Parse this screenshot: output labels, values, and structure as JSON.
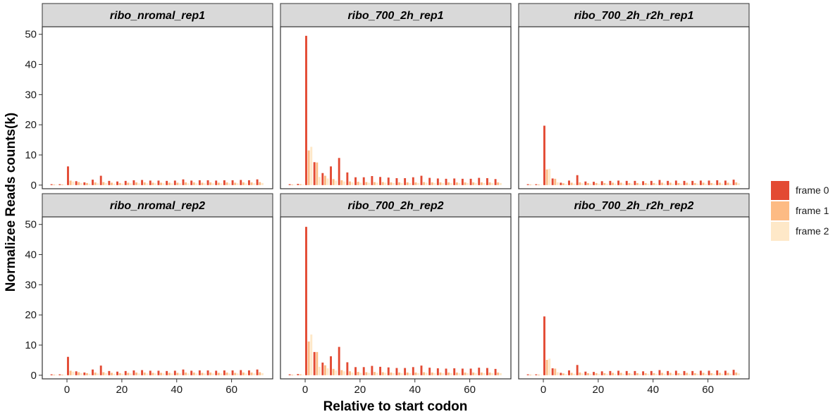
{
  "chart_data": {
    "type": "bar",
    "xlabel": "Relative to start codon",
    "ylabel": "Normalizee Reads counts(k)",
    "xlim": [
      -9,
      75
    ],
    "ylim": [
      -1.2,
      52.5
    ],
    "xticks": [
      0,
      20,
      40,
      60
    ],
    "yticks": [
      0,
      10,
      20,
      30,
      40,
      50
    ],
    "legend": {
      "position": "right",
      "entries": [
        "frame 0",
        "frame 1",
        "frame 2"
      ]
    },
    "colors": {
      "frame 0": "#e34a33",
      "frame 1": "#fdbb84",
      "frame 2": "#fee8c8",
      "strip_bg": "#d9d9d9"
    },
    "x": [
      -6,
      -5,
      -4,
      -3,
      -2,
      -1,
      0,
      1,
      2,
      3,
      4,
      5,
      6,
      7,
      8,
      9,
      10,
      11,
      12,
      13,
      14,
      15,
      16,
      17,
      18,
      19,
      20,
      21,
      22,
      23,
      24,
      25,
      26,
      27,
      28,
      29,
      30,
      31,
      32,
      33,
      34,
      35,
      36,
      37,
      38,
      39,
      40,
      41,
      42,
      43,
      44,
      45,
      46,
      47,
      48,
      49,
      50,
      51,
      52,
      53,
      54,
      55,
      56,
      57,
      58,
      59,
      60,
      61,
      62,
      63,
      64,
      65,
      66,
      67,
      68,
      69,
      70,
      71,
      72
    ],
    "panels": [
      {
        "title": "ribo_nromal_rep1",
        "row": 0,
        "col": 0,
        "frame0": [
          0.3,
          0.3,
          6.2,
          1.3,
          0.9,
          1.8,
          3.1,
          1.4,
          1.2,
          1.4,
          1.6,
          1.7,
          1.5,
          1.5,
          1.4,
          1.5,
          1.9,
          1.5,
          1.6,
          1.6,
          1.5,
          1.6,
          1.6,
          1.7,
          1.6,
          1.9
        ],
        "frame1": [
          0.2,
          0.2,
          1.5,
          1.0,
          0.7,
          0.9,
          1.0,
          0.8,
          0.7,
          0.8,
          0.9,
          0.9,
          0.8,
          0.8,
          0.8,
          0.8,
          0.9,
          0.9,
          0.8,
          0.9,
          0.8,
          0.9,
          0.8,
          0.9,
          0.9,
          1.0
        ],
        "frame2": [
          0.1,
          0.1,
          1.2,
          0.7,
          0.5,
          0.6,
          0.7,
          0.5,
          0.5,
          0.6,
          0.6,
          0.6,
          0.6,
          0.6,
          0.6,
          0.6,
          0.6,
          0.6,
          0.6,
          0.6,
          0.6,
          0.6,
          0.6,
          0.6,
          0.6,
          0.7
        ]
      },
      {
        "title": "ribo_700_2h_rep1",
        "row": 0,
        "col": 1,
        "frame0": [
          0.3,
          0.4,
          49.5,
          7.6,
          4.0,
          6.2,
          9.0,
          4.2,
          2.6,
          2.6,
          3.0,
          2.7,
          2.5,
          2.3,
          2.3,
          2.6,
          3.1,
          2.4,
          2.2,
          2.1,
          2.2,
          2.1,
          2.1,
          2.4,
          2.3,
          2.0
        ],
        "frame1": [
          0.2,
          0.3,
          11.5,
          7.5,
          3.1,
          2.0,
          1.6,
          1.2,
          1.1,
          1.0,
          1.0,
          1.0,
          0.9,
          0.9,
          0.9,
          0.9,
          1.0,
          0.9,
          0.9,
          0.9,
          0.9,
          0.9,
          0.9,
          0.9,
          0.9,
          0.9
        ],
        "frame2": [
          0.1,
          0.2,
          12.7,
          2.7,
          2.2,
          1.5,
          1.2,
          0.9,
          0.8,
          0.8,
          0.8,
          0.8,
          0.7,
          0.7,
          0.7,
          0.7,
          0.8,
          0.7,
          0.7,
          0.7,
          0.7,
          0.7,
          0.7,
          0.7,
          0.7,
          0.7
        ]
      },
      {
        "title": "ribo_700_2h_r2h_rep1",
        "row": 0,
        "col": 2,
        "frame0": [
          0.3,
          0.3,
          19.7,
          2.2,
          0.8,
          1.5,
          3.3,
          1.2,
          1.1,
          1.3,
          1.4,
          1.5,
          1.4,
          1.4,
          1.3,
          1.4,
          1.7,
          1.4,
          1.5,
          1.4,
          1.4,
          1.5,
          1.5,
          1.6,
          1.5,
          1.8
        ],
        "frame1": [
          0.2,
          0.2,
          5.2,
          2.1,
          0.6,
          0.8,
          0.9,
          0.7,
          0.7,
          0.7,
          0.8,
          0.8,
          0.7,
          0.7,
          0.7,
          0.7,
          0.8,
          0.8,
          0.7,
          0.8,
          0.7,
          0.8,
          0.7,
          0.8,
          0.8,
          0.9
        ],
        "frame2": [
          0.1,
          0.1,
          5.4,
          0.9,
          0.4,
          0.5,
          0.6,
          0.5,
          0.5,
          0.5,
          0.5,
          0.5,
          0.5,
          0.5,
          0.5,
          0.5,
          0.5,
          0.5,
          0.5,
          0.5,
          0.5,
          0.5,
          0.5,
          0.5,
          0.5,
          0.6
        ]
      },
      {
        "title": "ribo_nromal_rep2",
        "row": 1,
        "col": 0,
        "frame0": [
          0.3,
          0.3,
          6.1,
          1.3,
          0.9,
          1.9,
          3.2,
          1.4,
          1.2,
          1.4,
          1.6,
          1.7,
          1.5,
          1.5,
          1.4,
          1.5,
          1.9,
          1.5,
          1.6,
          1.6,
          1.5,
          1.6,
          1.6,
          1.7,
          1.6,
          1.9
        ],
        "frame1": [
          0.2,
          0.2,
          1.5,
          1.0,
          0.7,
          0.9,
          1.0,
          0.8,
          0.7,
          0.8,
          0.9,
          0.9,
          0.8,
          0.8,
          0.8,
          0.8,
          0.9,
          0.9,
          0.8,
          0.9,
          0.8,
          0.9,
          0.8,
          0.9,
          0.9,
          1.0
        ],
        "frame2": [
          0.1,
          0.1,
          1.2,
          0.7,
          0.5,
          0.6,
          0.7,
          0.5,
          0.5,
          0.6,
          0.6,
          0.6,
          0.6,
          0.6,
          0.6,
          0.6,
          0.6,
          0.6,
          0.6,
          0.6,
          0.6,
          0.6,
          0.6,
          0.6,
          0.6,
          0.7
        ]
      },
      {
        "title": "ribo_700_2h_rep2",
        "row": 1,
        "col": 1,
        "frame0": [
          0.3,
          0.4,
          49.2,
          7.7,
          4.2,
          6.3,
          9.4,
          4.3,
          2.7,
          2.7,
          3.1,
          2.8,
          2.6,
          2.4,
          2.4,
          2.7,
          3.2,
          2.5,
          2.3,
          2.2,
          2.3,
          2.2,
          2.2,
          2.5,
          2.4,
          2.1
        ],
        "frame1": [
          0.2,
          0.3,
          11.2,
          7.7,
          3.3,
          2.1,
          1.7,
          1.3,
          1.1,
          1.0,
          1.1,
          1.0,
          0.9,
          0.9,
          0.9,
          0.9,
          1.0,
          0.9,
          0.9,
          0.9,
          0.9,
          0.9,
          0.9,
          0.9,
          0.9,
          0.9
        ],
        "frame2": [
          0.1,
          0.2,
          13.5,
          2.8,
          2.3,
          1.6,
          1.3,
          0.9,
          0.8,
          0.8,
          0.8,
          0.8,
          0.7,
          0.7,
          0.7,
          0.7,
          0.8,
          0.7,
          0.7,
          0.7,
          0.7,
          0.7,
          0.7,
          0.7,
          0.7,
          0.7
        ]
      },
      {
        "title": "ribo_700_2h_r2h_rep2",
        "row": 1,
        "col": 2,
        "frame0": [
          0.3,
          0.3,
          19.5,
          2.3,
          0.8,
          1.6,
          3.4,
          1.2,
          1.1,
          1.3,
          1.4,
          1.5,
          1.4,
          1.4,
          1.3,
          1.4,
          1.7,
          1.4,
          1.5,
          1.4,
          1.4,
          1.5,
          1.5,
          1.6,
          1.5,
          1.8
        ],
        "frame1": [
          0.2,
          0.2,
          5.1,
          2.2,
          0.6,
          0.8,
          0.9,
          0.7,
          0.7,
          0.7,
          0.8,
          0.8,
          0.7,
          0.7,
          0.7,
          0.7,
          0.8,
          0.8,
          0.7,
          0.8,
          0.7,
          0.8,
          0.7,
          0.8,
          0.8,
          0.9
        ],
        "frame2": [
          0.1,
          0.1,
          5.5,
          1.0,
          0.4,
          0.5,
          0.6,
          0.5,
          0.5,
          0.5,
          0.5,
          0.5,
          0.5,
          0.5,
          0.5,
          0.5,
          0.5,
          0.5,
          0.5,
          0.5,
          0.5,
          0.5,
          0.5,
          0.5,
          0.5,
          0.6
        ]
      }
    ]
  }
}
